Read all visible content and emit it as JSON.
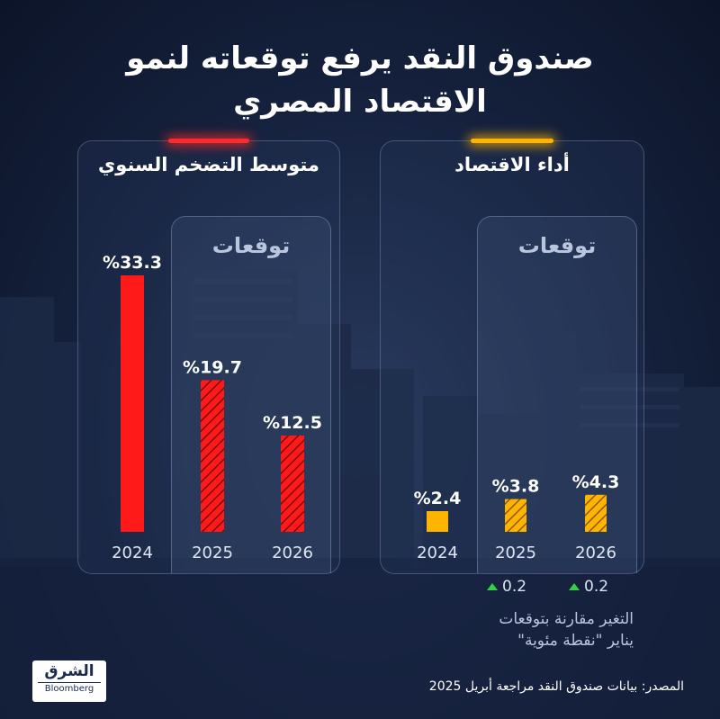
{
  "title_line1": "صندوق النقد يرفع توقعاته لنمو",
  "title_line2": "الاقتصاد المصري",
  "chart_data": [
    {
      "type": "bar",
      "title": "متوسط التضخم السنوي",
      "forecast_label": "توقعات",
      "categories": [
        "2024",
        "2025",
        "2026"
      ],
      "values": [
        33.3,
        19.7,
        12.5
      ],
      "value_labels": [
        "%33.3",
        "%19.7",
        "%12.5"
      ],
      "forecast": [
        false,
        true,
        true
      ],
      "color": "#ff1a1a"
    },
    {
      "type": "bar",
      "title": "أداء الاقتصاد",
      "forecast_label": "توقعات",
      "categories": [
        "2024",
        "2025",
        "2026"
      ],
      "values": [
        2.4,
        3.8,
        4.3
      ],
      "value_labels": [
        "%2.4",
        "%3.8",
        "%4.3"
      ],
      "forecast": [
        false,
        true,
        true
      ],
      "color": "#ffb400",
      "changes": [
        "0.2",
        "0.2"
      ]
    }
  ],
  "note_line1": "التغير مقارنة بتوقعات",
  "note_line2": "يناير \"نقطة مئوية\"",
  "source": "المصدر: بيانات صندوق النقد مراجعة أبريل 2025",
  "logo": {
    "name": "الشرق",
    "brand": "Bloomberg"
  }
}
